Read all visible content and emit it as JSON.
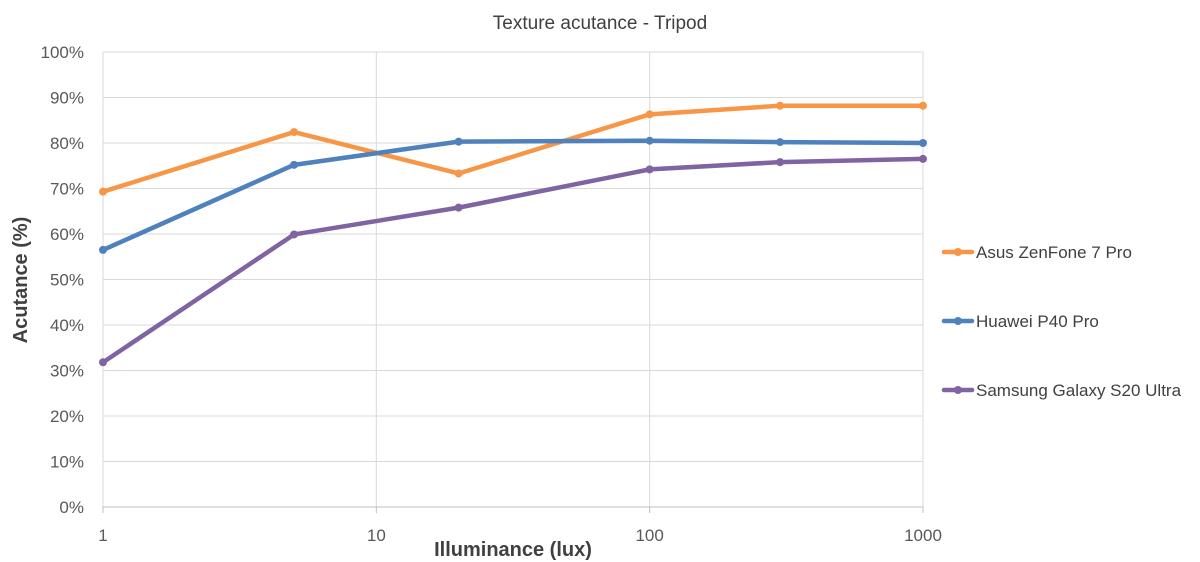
{
  "chart_data": {
    "type": "line",
    "title": "Texture acutance - Tripod",
    "xlabel": "Illuminance (lux)",
    "ylabel": "Acutance (%)",
    "x_scale": "log",
    "xlim": [
      1,
      1000
    ],
    "ylim": [
      0,
      100
    ],
    "x_ticks": [
      "1",
      "10",
      "100",
      "1000"
    ],
    "y_ticks": [
      "0%",
      "10%",
      "20%",
      "30%",
      "40%",
      "50%",
      "60%",
      "70%",
      "80%",
      "90%",
      "100%"
    ],
    "grid": true,
    "legend_position": "right",
    "x": [
      1,
      5,
      20,
      100,
      300,
      1000
    ],
    "series": [
      {
        "name": "Asus ZenFone 7 Pro",
        "color": "#F79646",
        "values": [
          69.3,
          82.4,
          73.3,
          86.3,
          88.2,
          88.2
        ]
      },
      {
        "name": "Huawei P40 Pro",
        "color": "#4F81BD",
        "values": [
          56.5,
          75.2,
          80.3,
          80.5,
          80.2,
          80.0
        ]
      },
      {
        "name": "Samsung Galaxy S20 Ultra",
        "color": "#8064A2",
        "values": [
          31.8,
          59.9,
          65.8,
          74.2,
          75.8,
          76.5
        ]
      }
    ]
  }
}
